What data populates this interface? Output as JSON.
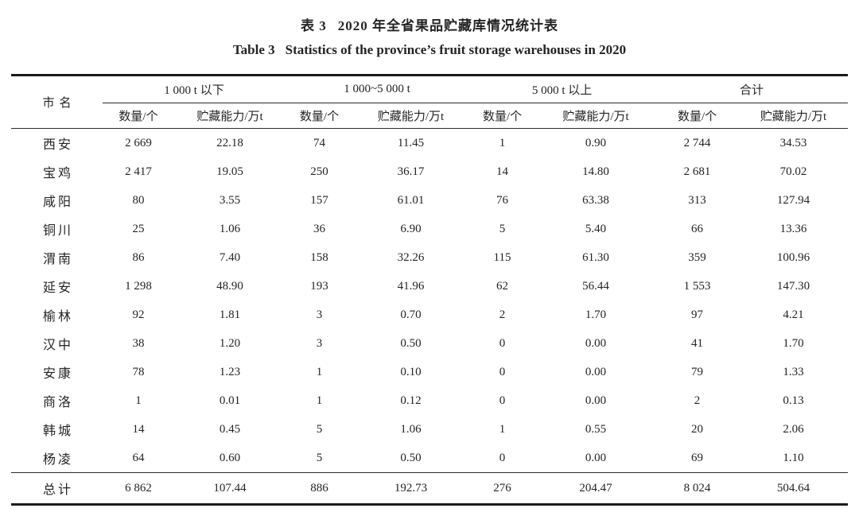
{
  "page": {
    "background": "#ffffff",
    "text_color": "#242424",
    "rule_color": "#1b1b1b"
  },
  "titles": {
    "zh_label": "表 3",
    "zh_text": "2020 年全省果品贮藏库情况统计表",
    "en_label": "Table 3",
    "en_text": "Statistics of the province’s fruit storage warehouses in 2020"
  },
  "table": {
    "city_header": "市名",
    "group_headers": [
      "1 000 t 以下",
      "1 000~5 000 t",
      "5 000 t 以上",
      "合计"
    ],
    "sub_headers": [
      "数量/个",
      "贮藏能力/万t",
      "数量/个",
      "贮藏能力/万t",
      "数量/个",
      "贮藏能力/万t",
      "数量/个",
      "贮藏能力/万t"
    ],
    "rows": [
      {
        "city": "西安",
        "values": [
          "2 669",
          "22.18",
          "74",
          "11.45",
          "1",
          "0.90",
          "2 744",
          "34.53"
        ]
      },
      {
        "city": "宝鸡",
        "values": [
          "2 417",
          "19.05",
          "250",
          "36.17",
          "14",
          "14.80",
          "2 681",
          "70.02"
        ]
      },
      {
        "city": "咸阳",
        "values": [
          "80",
          "3.55",
          "157",
          "61.01",
          "76",
          "63.38",
          "313",
          "127.94"
        ]
      },
      {
        "city": "铜川",
        "values": [
          "25",
          "1.06",
          "36",
          "6.90",
          "5",
          "5.40",
          "66",
          "13.36"
        ]
      },
      {
        "city": "渭南",
        "values": [
          "86",
          "7.40",
          "158",
          "32.26",
          "115",
          "61.30",
          "359",
          "100.96"
        ]
      },
      {
        "city": "延安",
        "values": [
          "1 298",
          "48.90",
          "193",
          "41.96",
          "62",
          "56.44",
          "1 553",
          "147.30"
        ]
      },
      {
        "city": "榆林",
        "values": [
          "92",
          "1.81",
          "3",
          "0.70",
          "2",
          "1.70",
          "97",
          "4.21"
        ]
      },
      {
        "city": "汉中",
        "values": [
          "38",
          "1.20",
          "3",
          "0.50",
          "0",
          "0.00",
          "41",
          "1.70"
        ]
      },
      {
        "city": "安康",
        "values": [
          "78",
          "1.23",
          "1",
          "0.10",
          "0",
          "0.00",
          "79",
          "1.33"
        ]
      },
      {
        "city": "商洛",
        "values": [
          "1",
          "0.01",
          "1",
          "0.12",
          "0",
          "0.00",
          "2",
          "0.13"
        ]
      },
      {
        "city": "韩城",
        "values": [
          "14",
          "0.45",
          "5",
          "1.06",
          "1",
          "0.55",
          "20",
          "2.06"
        ]
      },
      {
        "city": "杨凌",
        "values": [
          "64",
          "0.60",
          "5",
          "0.50",
          "0",
          "0.00",
          "69",
          "1.10"
        ]
      }
    ],
    "total_row": {
      "city": "总计",
      "values": [
        "6 862",
        "107.44",
        "886",
        "192.73",
        "276",
        "204.47",
        "8 024",
        "504.64"
      ]
    }
  }
}
